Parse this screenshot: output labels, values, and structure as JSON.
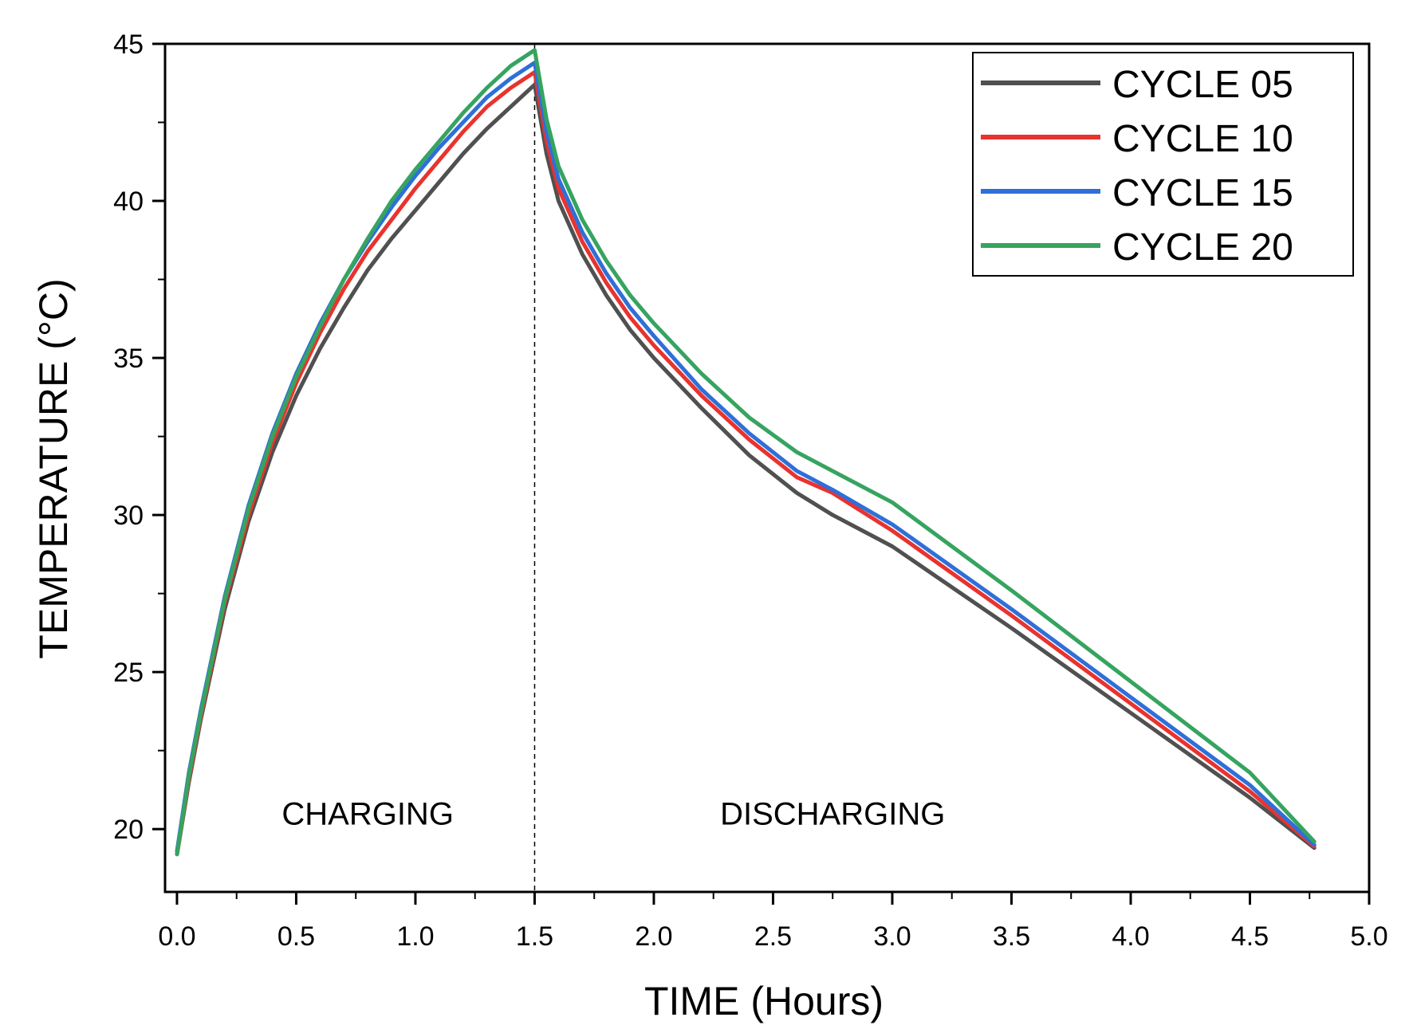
{
  "chart_data": {
    "type": "line",
    "title": "",
    "xlabel": "TIME (Hours)",
    "ylabel": "TEMPERATURE (°C)",
    "xlim": [
      -0.05,
      5.0
    ],
    "ylim": [
      18.0,
      45.0
    ],
    "xticks": [
      0.0,
      0.5,
      1.0,
      1.5,
      2.0,
      2.5,
      3.0,
      3.5,
      4.0,
      4.5,
      5.0
    ],
    "xtick_labels": [
      "0.0",
      "0.5",
      "1.0",
      "1.5",
      "2.0",
      "2.5",
      "3.0",
      "3.5",
      "4.0",
      "4.5",
      "5.0"
    ],
    "yticks": [
      20,
      25,
      30,
      35,
      40,
      45
    ],
    "ytick_labels": [
      "20",
      "25",
      "30",
      "35",
      "40",
      "45"
    ],
    "grid": false,
    "legend_position": "top-right",
    "vline_x": 1.5,
    "annotations": [
      {
        "text": "CHARGING",
        "x": 0.8,
        "y": 20.5
      },
      {
        "text": "DISCHARGING",
        "x": 2.75,
        "y": 20.5
      }
    ],
    "series": [
      {
        "name": "CYCLE 05",
        "color": "#505050",
        "x": [
          0.0,
          0.05,
          0.1,
          0.2,
          0.3,
          0.4,
          0.5,
          0.6,
          0.7,
          0.8,
          0.9,
          1.0,
          1.1,
          1.2,
          1.3,
          1.4,
          1.5,
          1.55,
          1.6,
          1.7,
          1.8,
          1.9,
          2.0,
          2.2,
          2.4,
          2.6,
          2.75,
          3.0,
          3.5,
          4.0,
          4.5,
          4.77
        ],
        "y": [
          19.2,
          21.5,
          23.5,
          27.0,
          29.8,
          32.0,
          33.8,
          35.3,
          36.6,
          37.8,
          38.8,
          39.7,
          40.6,
          41.5,
          42.3,
          43.0,
          43.7,
          41.5,
          40.0,
          38.3,
          37.0,
          35.9,
          35.0,
          33.4,
          31.9,
          30.7,
          30.0,
          29.0,
          26.4,
          23.7,
          21.0,
          19.4
        ]
      },
      {
        "name": "CYCLE 10",
        "color": "#e8332e",
        "x": [
          0.0,
          0.05,
          0.1,
          0.2,
          0.3,
          0.4,
          0.5,
          0.6,
          0.7,
          0.8,
          0.9,
          1.0,
          1.1,
          1.2,
          1.3,
          1.4,
          1.5,
          1.55,
          1.6,
          1.7,
          1.8,
          1.9,
          2.0,
          2.2,
          2.4,
          2.6,
          2.75,
          3.0,
          3.5,
          4.0,
          4.5,
          4.77
        ],
        "y": [
          19.2,
          21.6,
          23.6,
          27.2,
          30.0,
          32.3,
          34.2,
          35.8,
          37.2,
          38.4,
          39.4,
          40.4,
          41.3,
          42.2,
          43.0,
          43.6,
          44.1,
          41.9,
          40.4,
          38.7,
          37.4,
          36.3,
          35.4,
          33.8,
          32.4,
          31.2,
          30.7,
          29.5,
          26.8,
          24.0,
          21.2,
          19.45
        ]
      },
      {
        "name": "CYCLE 15",
        "color": "#2f6fd8",
        "x": [
          0.0,
          0.05,
          0.1,
          0.2,
          0.3,
          0.4,
          0.5,
          0.6,
          0.7,
          0.8,
          0.9,
          1.0,
          1.1,
          1.2,
          1.3,
          1.4,
          1.5,
          1.55,
          1.6,
          1.7,
          1.8,
          1.9,
          2.0,
          2.2,
          2.4,
          2.6,
          2.75,
          3.0,
          3.5,
          4.0,
          4.5,
          4.77
        ],
        "y": [
          19.3,
          21.8,
          23.8,
          27.4,
          30.3,
          32.6,
          34.5,
          36.1,
          37.5,
          38.7,
          39.8,
          40.8,
          41.7,
          42.5,
          43.3,
          43.9,
          44.4,
          42.2,
          40.7,
          39.0,
          37.7,
          36.6,
          35.7,
          34.0,
          32.6,
          31.4,
          30.8,
          29.7,
          27.0,
          24.2,
          21.4,
          19.5
        ]
      },
      {
        "name": "CYCLE 20",
        "color": "#36a460",
        "x": [
          0.0,
          0.05,
          0.1,
          0.2,
          0.3,
          0.4,
          0.5,
          0.6,
          0.7,
          0.8,
          0.9,
          1.0,
          1.1,
          1.2,
          1.3,
          1.4,
          1.5,
          1.55,
          1.6,
          1.7,
          1.8,
          1.9,
          2.0,
          2.2,
          2.4,
          2.6,
          2.75,
          3.0,
          3.5,
          4.0,
          4.5,
          4.77
        ],
        "y": [
          19.2,
          21.7,
          23.7,
          27.3,
          30.2,
          32.5,
          34.4,
          36.0,
          37.5,
          38.8,
          40.0,
          41.0,
          41.9,
          42.8,
          43.6,
          44.3,
          44.8,
          42.6,
          41.1,
          39.4,
          38.1,
          37.0,
          36.1,
          34.5,
          33.1,
          32.0,
          31.4,
          30.4,
          27.6,
          24.7,
          21.8,
          19.6
        ]
      }
    ]
  }
}
